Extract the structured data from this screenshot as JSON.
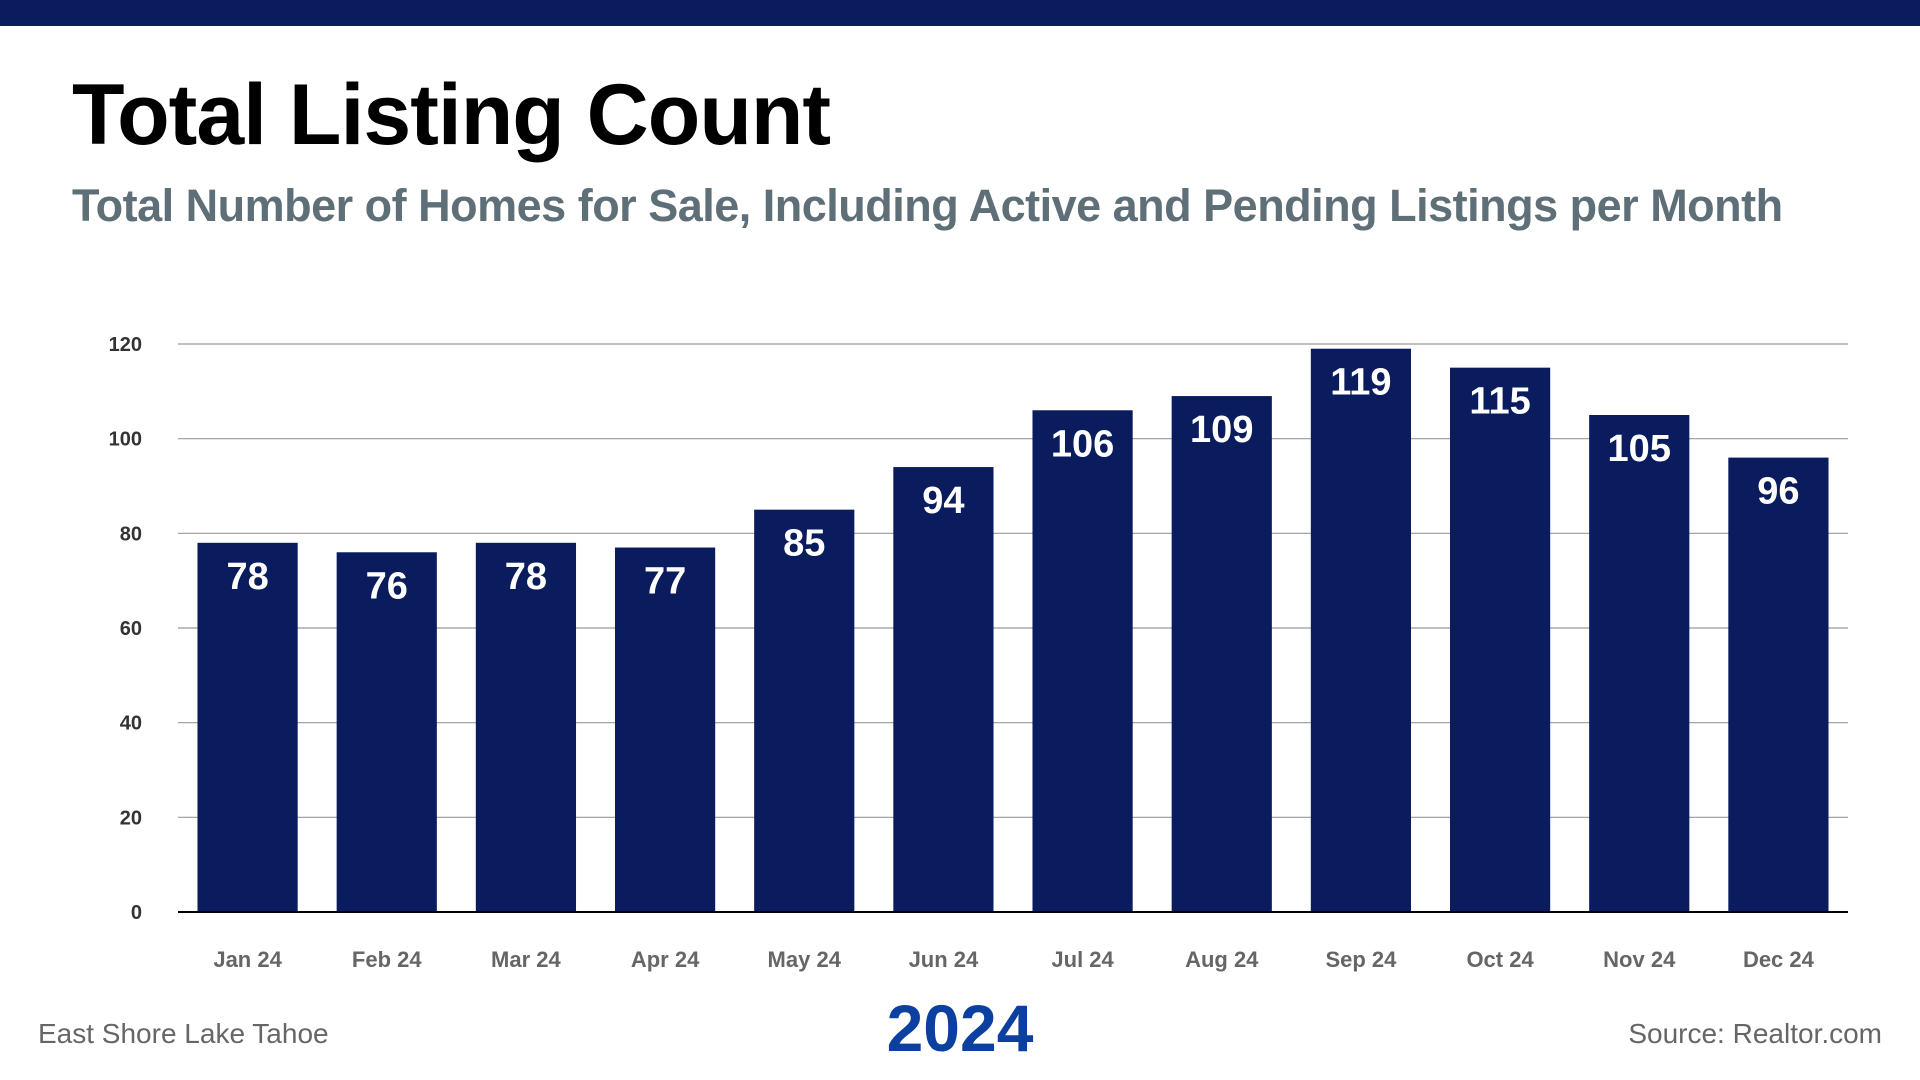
{
  "title": "Total Listing Count",
  "subtitle": "Total Number of Homes for Sale, Including Active and Pending Listings per Month",
  "footer": {
    "location": "East Shore Lake Tahoe",
    "year": "2024",
    "source": "Source: Realtor.com"
  },
  "colors": {
    "bar": "#0b1c5e",
    "top_bar": "#0b1c5e",
    "year": "#0b3fa0",
    "subtitle": "#5f6f78",
    "grid": "#9a9a9a"
  },
  "chart_data": {
    "type": "bar",
    "title": "Total Listing Count",
    "xlabel": "",
    "ylabel": "",
    "categories": [
      "Jan 24",
      "Feb 24",
      "Mar 24",
      "Apr 24",
      "May 24",
      "Jun 24",
      "Jul 24",
      "Aug 24",
      "Sep 24",
      "Oct 24",
      "Nov 24",
      "Dec 24"
    ],
    "values": [
      78,
      76,
      78,
      77,
      85,
      94,
      106,
      109,
      119,
      115,
      105,
      96
    ],
    "ylim": [
      0,
      120
    ],
    "yticks": [
      0,
      20,
      40,
      60,
      80,
      100,
      120
    ],
    "grid": true,
    "data_labels": true
  }
}
